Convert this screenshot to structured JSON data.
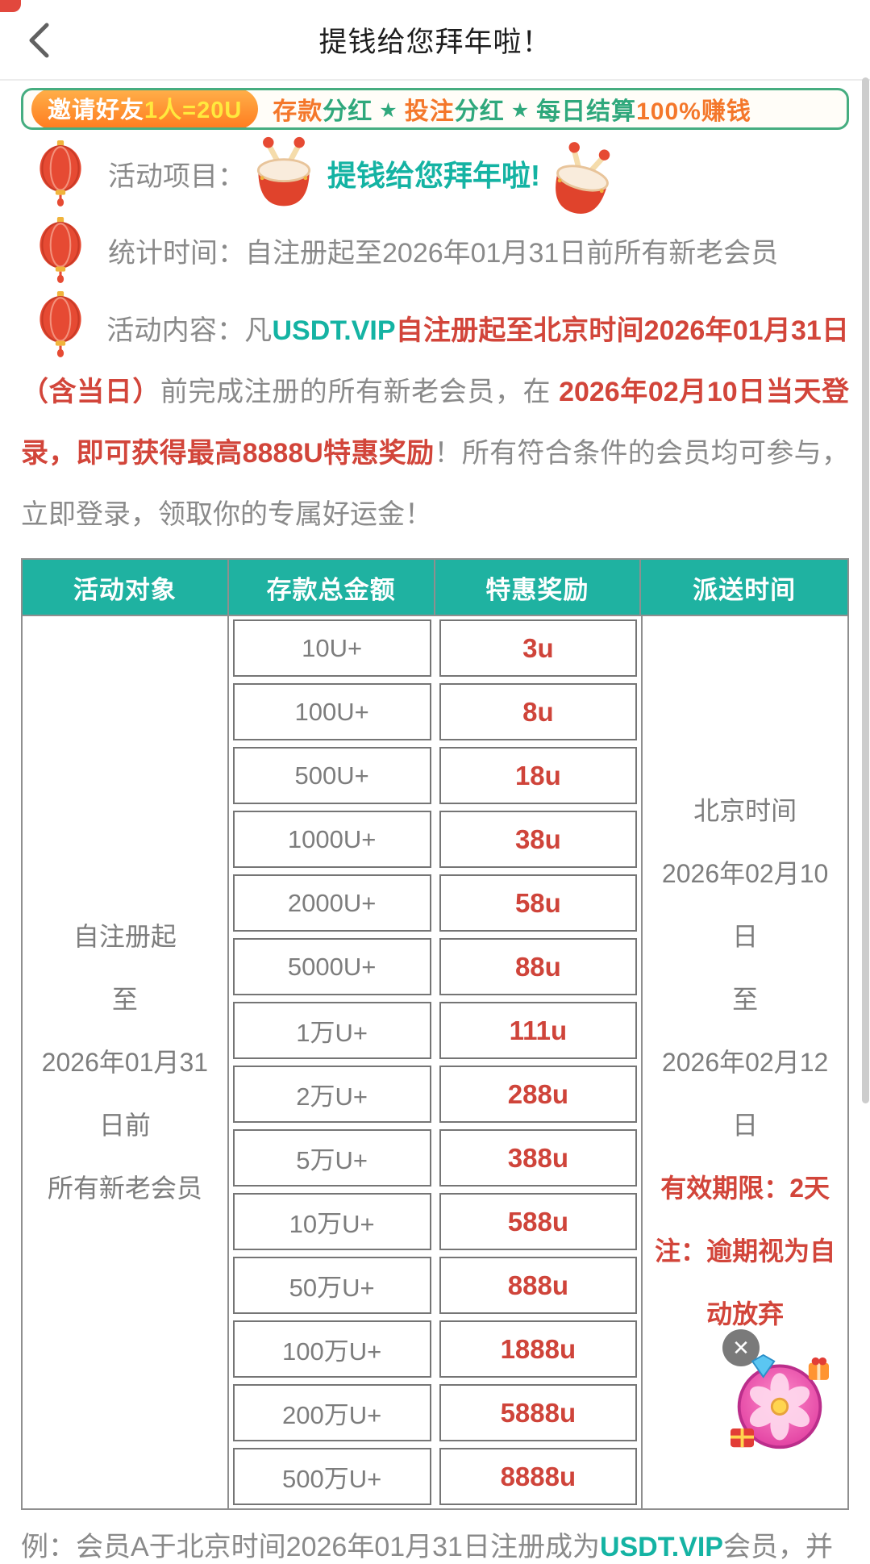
{
  "header": {
    "title": "提钱给您拜年啦！"
  },
  "banner": {
    "invite_white": "邀请好友",
    "invite_highlight": "1人=20U",
    "segments": [
      {
        "text": "存款",
        "style": "orange"
      },
      {
        "text": "分红",
        "style": "green"
      },
      {
        "text": "★",
        "style": "star"
      },
      {
        "text": "投注",
        "style": "orange"
      },
      {
        "text": "分红",
        "style": "green"
      },
      {
        "text": "★",
        "style": "star"
      },
      {
        "text": "每日结算",
        "style": "green"
      },
      {
        "text": "100%赚钱",
        "style": "orange"
      }
    ]
  },
  "info": {
    "item_label": "活动项目：",
    "item_value": "提钱给您拜年啦!",
    "stat_label": "统计时间：",
    "stat_value": "自注册起至2026年01月31日前所有新老会员",
    "content_segments": [
      {
        "text": "活动内容：凡",
        "style": "gray"
      },
      {
        "text": "USDT.VIP",
        "style": "teal"
      },
      {
        "text": "自注册起至北京时间2026年01月31日（含当日）",
        "style": "red"
      },
      {
        "text": "前完成注册的所有新老会员，在 ",
        "style": "gray"
      },
      {
        "text": "2026年02月10日当天登录，即可获得最高8888U特惠奖励",
        "style": "red"
      },
      {
        "text": "！所有符合条件的会员均可参与，立即登录，领取你的专属好运金！",
        "style": "gray"
      }
    ]
  },
  "table": {
    "headers": [
      "活动对象",
      "存款总金额",
      "特惠奖励",
      "派送时间"
    ],
    "audience_lines": [
      "自注册起",
      "至",
      "2026年01月31",
      "日前",
      "所有新老会员"
    ],
    "rows": [
      {
        "amount": "10U+",
        "reward": "3u"
      },
      {
        "amount": "100U+",
        "reward": "8u"
      },
      {
        "amount": "500U+",
        "reward": "18u"
      },
      {
        "amount": "1000U+",
        "reward": "38u"
      },
      {
        "amount": "2000U+",
        "reward": "58u"
      },
      {
        "amount": "5000U+",
        "reward": "88u"
      },
      {
        "amount": "1万U+",
        "reward": "111u"
      },
      {
        "amount": "2万U+",
        "reward": "288u"
      },
      {
        "amount": "5万U+",
        "reward": "388u"
      },
      {
        "amount": "10万U+",
        "reward": "588u"
      },
      {
        "amount": "50万U+",
        "reward": "888u"
      },
      {
        "amount": "100万U+",
        "reward": "1888u"
      },
      {
        "amount": "200万U+",
        "reward": "5888u"
      },
      {
        "amount": "500万U+",
        "reward": "8888u"
      }
    ],
    "delivery_lines": [
      "北京时间",
      "2026年02月10",
      "日",
      "至",
      "2026年02月12",
      "日"
    ],
    "delivery_notes": [
      "有效期限：2天",
      "注：逾期视为自",
      "动放弃"
    ]
  },
  "example": {
    "segments": [
      {
        "text": "例：会员A于北京时间2026年01月31日注册成为",
        "style": "gray"
      },
      {
        "text": "USDT.VIP",
        "style": "teal"
      },
      {
        "text": "会员，并",
        "style": "gray"
      }
    ]
  },
  "widget": {
    "close_glyph": "✕"
  },
  "colors": {
    "teal": "#1fb2a1",
    "red": "#d2453a",
    "orange": "#f4772a",
    "green": "#2fa87c",
    "reward_red": "#cf443a"
  }
}
